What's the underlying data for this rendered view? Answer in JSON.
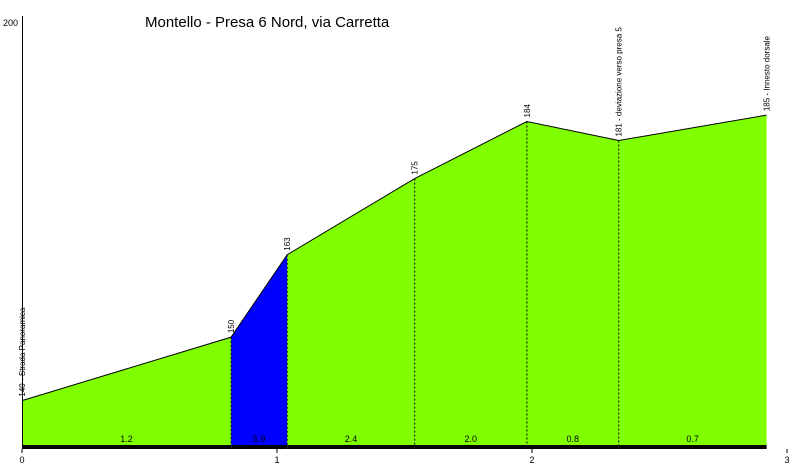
{
  "chart_data": {
    "type": "area",
    "title": "Montello - Presa 6 Nord, via Carretta",
    "xlabel": "",
    "ylabel": "",
    "xlim": [
      0,
      3
    ],
    "ylim": [
      133,
      200
    ],
    "x_ticks": [
      "0",
      "1",
      "2",
      "3"
    ],
    "y_ticks": [
      "200"
    ],
    "colors": {
      "fill": "#80ff00",
      "steep": "#0000ff",
      "stroke": "#000000",
      "axis": "#000000"
    },
    "points": [
      {
        "x": 0.0,
        "y": 140,
        "label": "140 - Strada Panoramica"
      },
      {
        "x": 0.82,
        "y": 150,
        "label": "150"
      },
      {
        "x": 1.04,
        "y": 163,
        "label": "163"
      },
      {
        "x": 1.54,
        "y": 175,
        "label": "175"
      },
      {
        "x": 1.98,
        "y": 184,
        "label": "184"
      },
      {
        "x": 2.34,
        "y": 181,
        "label": "181 - deviazione verso presa 5"
      },
      {
        "x": 2.92,
        "y": 185,
        "label": "185 - Innesto dorsale"
      }
    ],
    "segments": [
      {
        "label": "1.2",
        "color": "#80ff00"
      },
      {
        "label": "5.9",
        "color": "#0000ff"
      },
      {
        "label": "2.4",
        "color": "#80ff00"
      },
      {
        "label": "2.0",
        "color": "#80ff00"
      },
      {
        "label": "0.8",
        "color": "#80ff00"
      },
      {
        "label": "0.7",
        "color": "#80ff00"
      }
    ]
  }
}
